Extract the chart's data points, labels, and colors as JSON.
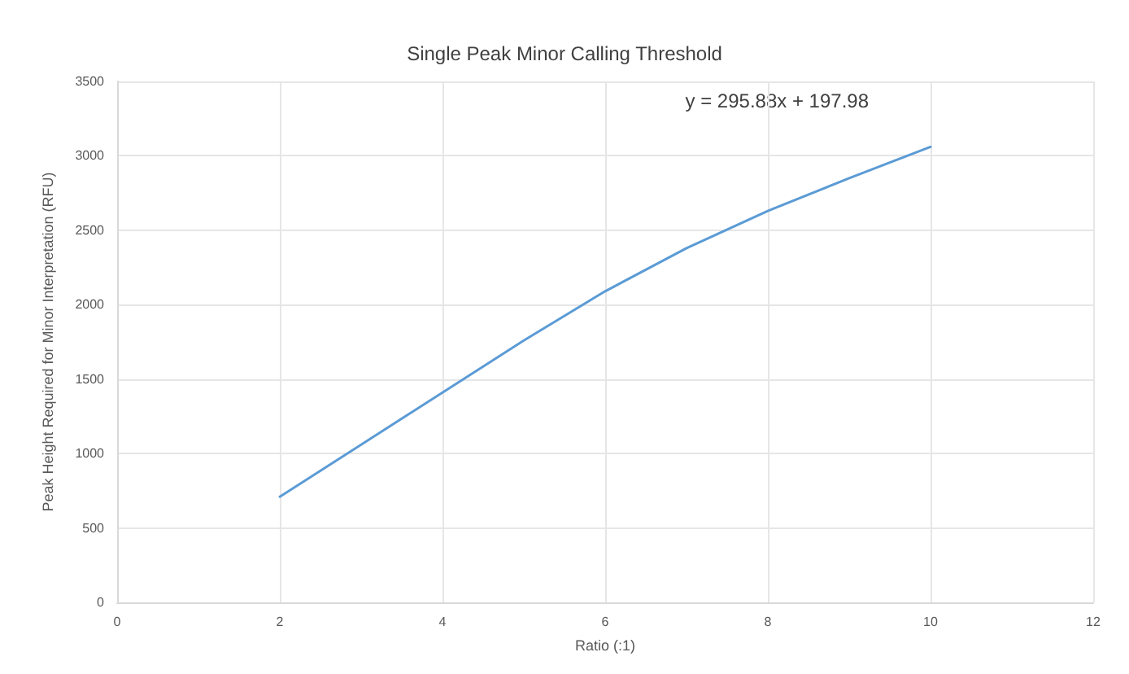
{
  "chart_data": {
    "type": "line",
    "title": "Single Peak Minor Calling Threshold",
    "xlabel": "Ratio (:1)",
    "ylabel": "Peak Height Required for Minor Interpretation (RFU)",
    "annotations": [
      "y = 295.88x + 197.98"
    ],
    "x": [
      2,
      3,
      4,
      5,
      6,
      7,
      8,
      9,
      10
    ],
    "series": [
      {
        "color": "#5b9bd5",
        "values": [
          710,
          1060,
          1410,
          1760,
          2090,
          2380,
          2630,
          2850,
          3060
        ]
      }
    ],
    "xlim": [
      0,
      12
    ],
    "xticks": [
      0,
      2,
      4,
      6,
      8,
      10,
      12
    ],
    "ylim": [
      0,
      3500
    ],
    "yticks": [
      0,
      500,
      1000,
      1500,
      2000,
      2500,
      3000,
      3500
    ],
    "grid": true,
    "marker": "none",
    "line_style": "solid"
  }
}
